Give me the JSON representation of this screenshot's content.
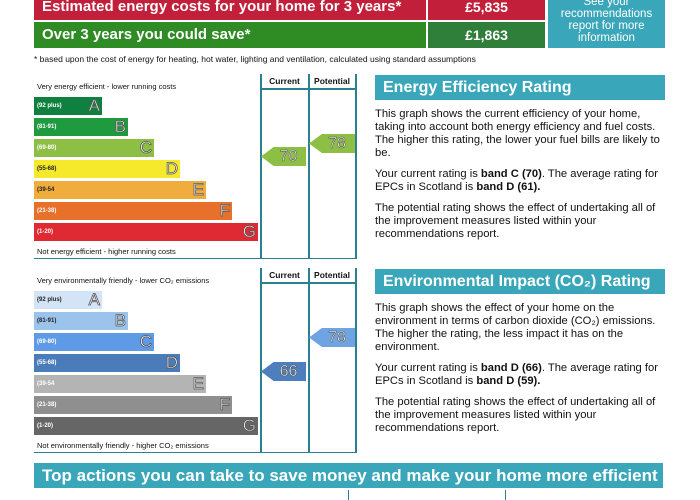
{
  "costs": {
    "estimated_label": "Estimated energy costs for your home for 3 years*",
    "estimated_value": "£5,835",
    "save_label": "Over 3 years you could save*",
    "save_value": "£1,863",
    "recommend_text": "See your recommendations report for more information",
    "footnote": "* based upon the cost of energy for heating, hot water, lighting and ventilation, calculated using standard assumptions"
  },
  "energy_chart": {
    "top_label": "Very energy efficient - lower running costs",
    "bottom_label": "Not energy efficient - higher running costs",
    "current_header": "Current",
    "potential_header": "Potential",
    "current": 70,
    "potential": 78,
    "current_color": "#8cbf44",
    "potential_color": "#8cbf44",
    "bands": [
      {
        "range": "(92 plus)",
        "letter": "A",
        "color": "#0f8040"
      },
      {
        "range": "(81-91)",
        "letter": "B",
        "color": "#1f9a3f"
      },
      {
        "range": "(69-80)",
        "letter": "C",
        "color": "#8cbf44"
      },
      {
        "range": "(55-68)",
        "letter": "D",
        "color": "#f6e82a"
      },
      {
        "range": "(39-54",
        "letter": "E",
        "color": "#f0ac3c"
      },
      {
        "range": "(21-38)",
        "letter": "F",
        "color": "#e7702b"
      },
      {
        "range": "(1-20)",
        "letter": "G",
        "color": "#df2a33"
      }
    ]
  },
  "env_chart": {
    "top_label": "Very environmentally friendly - lower CO₂ emissions",
    "bottom_label": "Not environmentally friendly - higher CO₂ emissions",
    "current_header": "Current",
    "potential_header": "Potential",
    "current": 66,
    "potential": 78,
    "current_color": "#4d7fbf",
    "potential_color": "#6fa4e2",
    "bands": [
      {
        "range": "(92 plus)",
        "letter": "A",
        "color": "#d3e4f6"
      },
      {
        "range": "(81-91)",
        "letter": "B",
        "color": "#9cc3ec"
      },
      {
        "range": "(69-80)",
        "letter": "C",
        "color": "#5e9ae6"
      },
      {
        "range": "(55-68)",
        "letter": "D",
        "color": "#4b7cba"
      },
      {
        "range": "(39-54",
        "letter": "E",
        "color": "#b4b4b4"
      },
      {
        "range": "(21-38)",
        "letter": "F",
        "color": "#8f8f8f"
      },
      {
        "range": "(1-20)",
        "letter": "G",
        "color": "#666666"
      }
    ]
  },
  "energy_panel": {
    "title": "Energy Efficiency Rating",
    "p1": "This graph shows the current efficiency of your home, taking into account both energy efficiency and fuel costs. The higher this rating, the lower your fuel bills are likely to be.",
    "p2a": "Your current rating is ",
    "p2b": "band C (70)",
    "p2c": ". The average rating for EPCs in Scotland is ",
    "p2d": "band D (61).",
    "p3": "The potential rating shows the effect of undertaking all of the improvement measures listed within your recommendations report."
  },
  "env_panel": {
    "title": "Environmental Impact (CO₂) Rating",
    "p1": "This graph shows the effect of your home on the environment in terms of carbon dioxide (CO₂) emissions. The higher the rating, the less impact it has on the environment.",
    "p2a": "Your current rating is ",
    "p2b": "band D (66)",
    "p2c": ". The average rating for EPCs in Scotland is ",
    "p2d": "band D (59).",
    "p3": "The potential rating shows the effect of undertaking all of the improvement measures listed within your recommendations report."
  },
  "actions_banner": "Top actions you can take to save money and make your home more efficient"
}
